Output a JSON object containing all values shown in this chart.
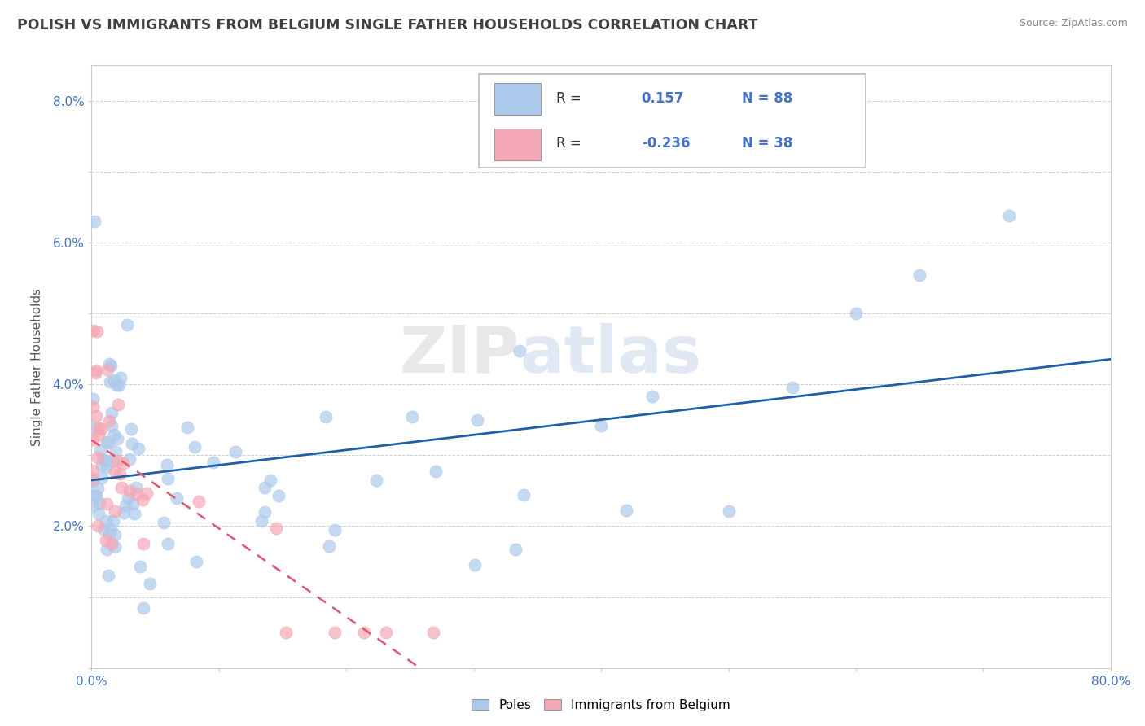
{
  "title": "POLISH VS IMMIGRANTS FROM BELGIUM SINGLE FATHER HOUSEHOLDS CORRELATION CHART",
  "source": "Source: ZipAtlas.com",
  "xlabel": "",
  "ylabel": "Single Father Households",
  "xlim": [
    0.0,
    0.8
  ],
  "ylim": [
    0.0,
    0.085
  ],
  "xticks": [
    0.0,
    0.8
  ],
  "yticks": [
    0.0,
    0.01,
    0.02,
    0.03,
    0.04,
    0.05,
    0.06,
    0.07,
    0.08
  ],
  "xtick_labels": [
    "0.0%",
    "80.0%"
  ],
  "ytick_labels": [
    "",
    "",
    "2.0%",
    "",
    "4.0%",
    "",
    "6.0%",
    "",
    "8.0%"
  ],
  "series1_color": "#adc9eb",
  "series2_color": "#f5a8b5",
  "trendline1_color": "#1f5fa6",
  "trendline2_color": "#e05570",
  "R1": 0.157,
  "N1": 88,
  "R2": -0.236,
  "N2": 38,
  "legend1_label": "Poles",
  "legend2_label": "Immigrants from Belgium",
  "watermark": "ZIPatlas",
  "tick_color": "#4472c4",
  "grid_color": "#d0d0d0",
  "title_color": "#404040",
  "source_color": "#888888"
}
